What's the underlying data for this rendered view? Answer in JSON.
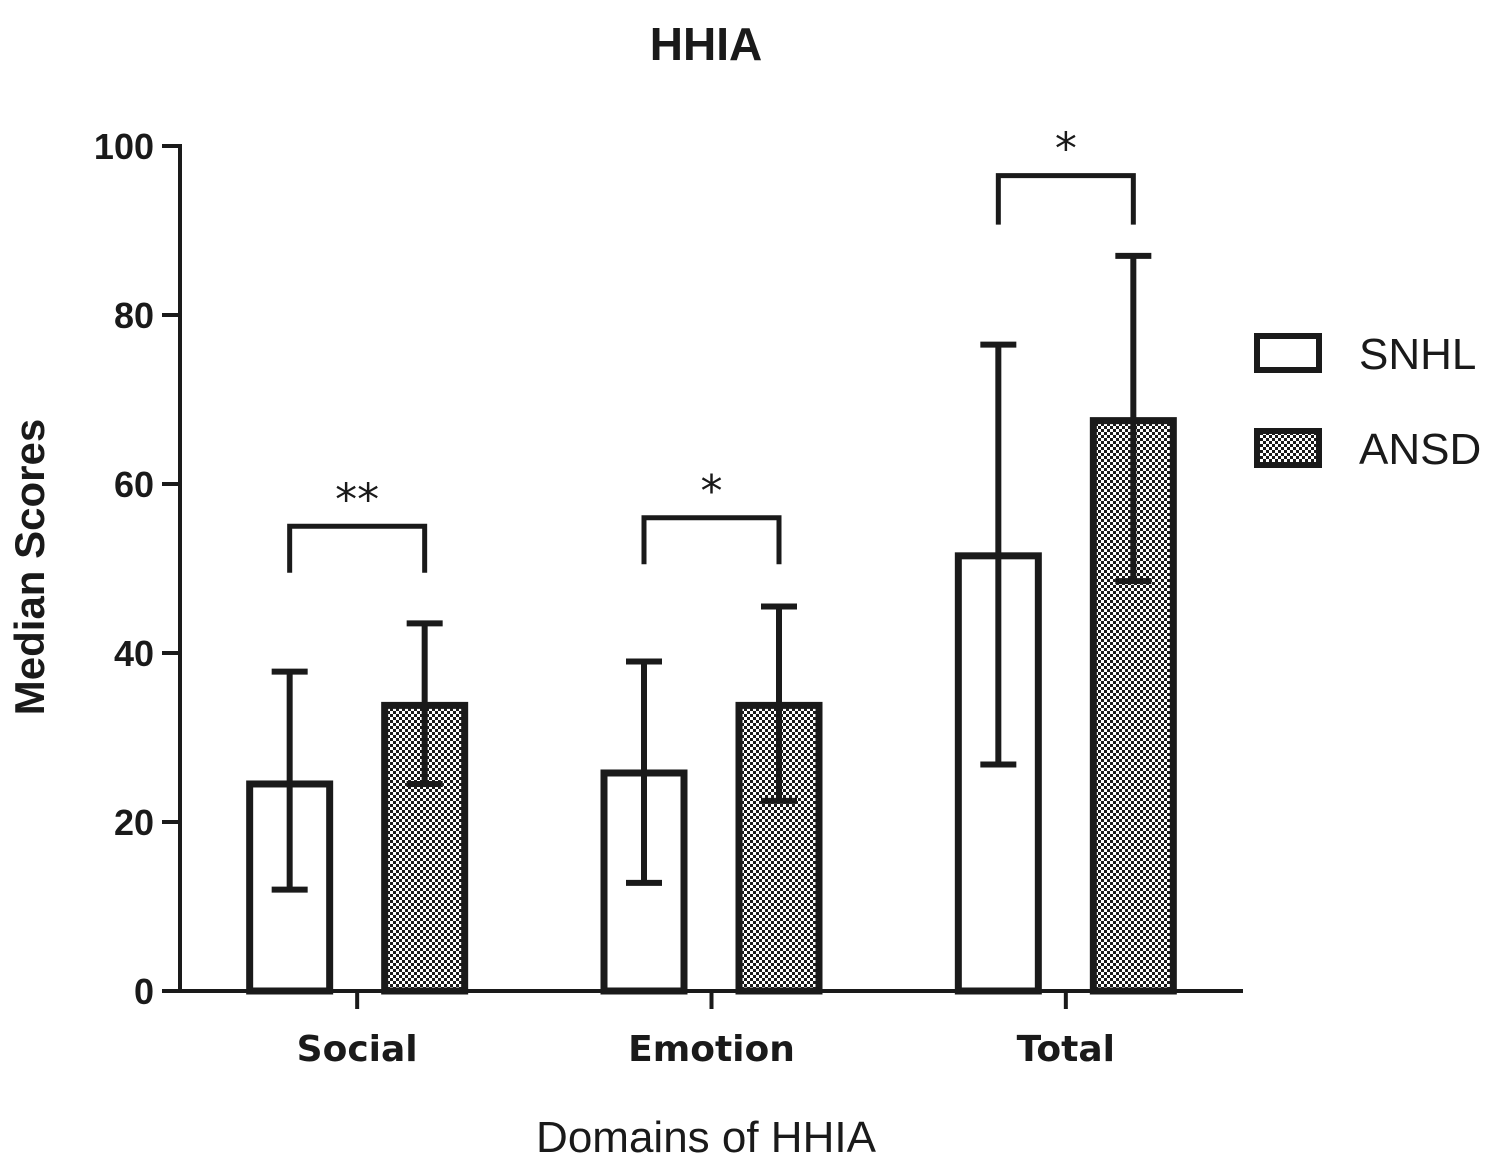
{
  "chart_data": {
    "type": "bar",
    "title": "HHIA",
    "xlabel": "Domains of HHIA",
    "ylabel": "Median Scores",
    "categories": [
      "Social",
      "Emotion",
      "Total"
    ],
    "ylim": [
      0,
      100
    ],
    "yticks": [
      "0",
      "20",
      "40",
      "60",
      "80",
      "100"
    ],
    "grid": false,
    "legend_position": "right",
    "series": [
      {
        "name": "SNHL",
        "pattern": "hollow",
        "values": [
          24.5,
          25.8,
          51.5
        ],
        "error_low": [
          12.0,
          12.8,
          26.8
        ],
        "error_high": [
          37.8,
          39.0,
          76.5
        ]
      },
      {
        "name": "ANSD",
        "pattern": "checkered",
        "values": [
          33.8,
          33.8,
          67.5
        ],
        "error_low": [
          24.5,
          22.5,
          48.5
        ],
        "error_high": [
          43.5,
          45.5,
          87.0
        ]
      }
    ],
    "significance": [
      {
        "category": "Social",
        "label": "**",
        "bracket_y": 55,
        "bracket_drop": 5.5
      },
      {
        "category": "Emotion",
        "label": "*",
        "bracket_y": 56,
        "bracket_drop": 5.5
      },
      {
        "category": "Total",
        "label": "*",
        "bracket_y": 96.5,
        "bracket_drop": 5.8
      }
    ]
  }
}
